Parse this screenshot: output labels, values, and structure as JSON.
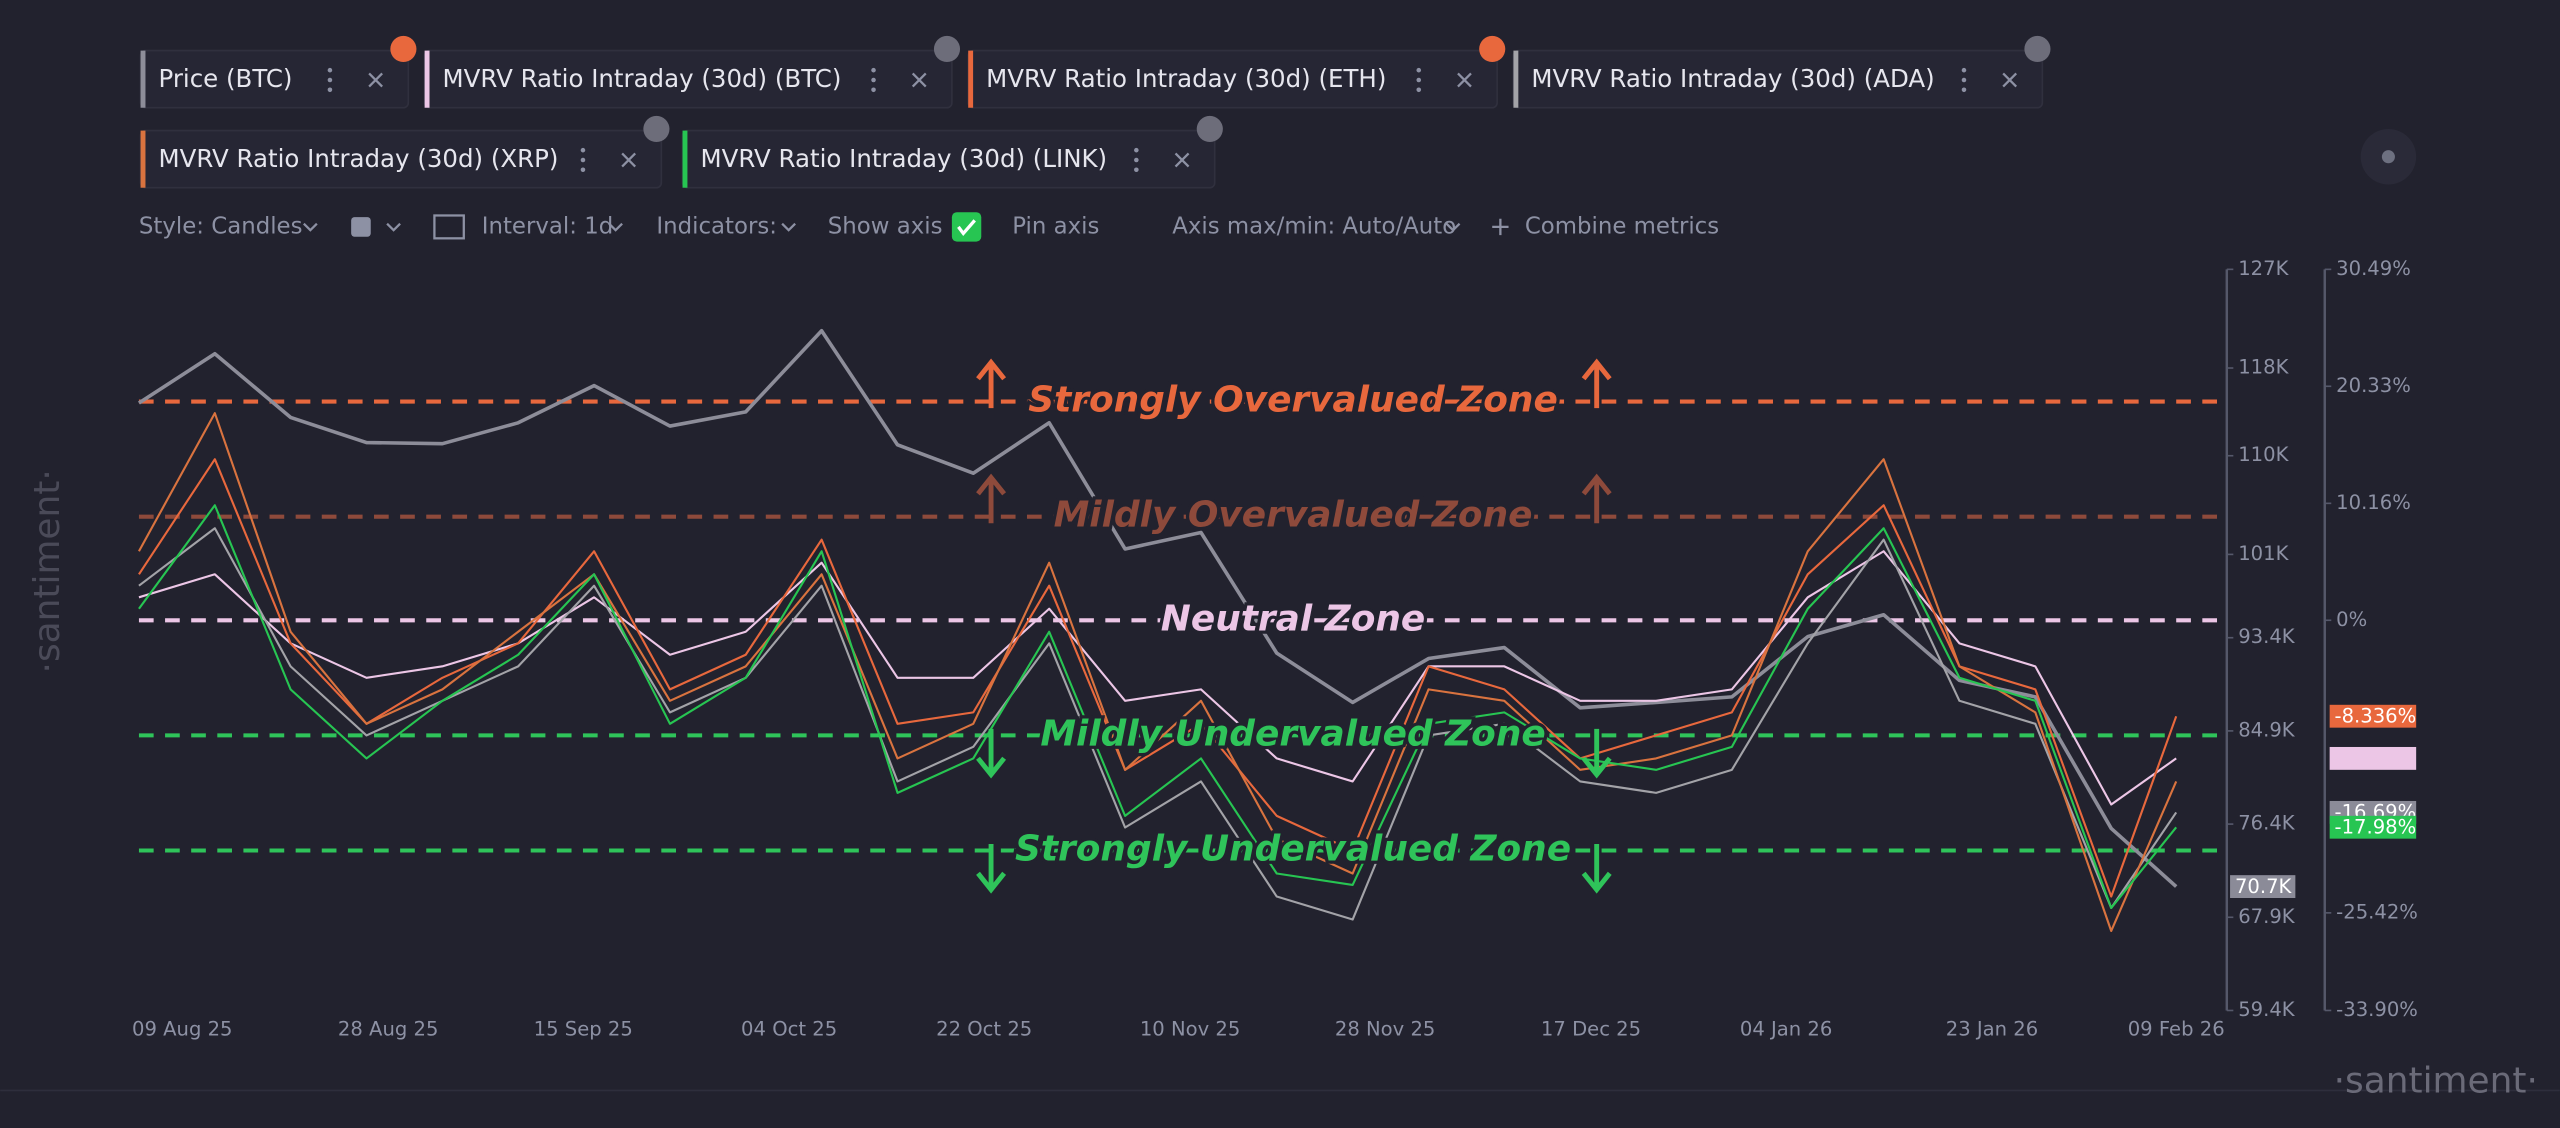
{
  "watermark": "·santiment·",
  "toolbar": [
    "Style: Candles",
    "Interval: 1d",
    "Indicators:",
    "Show axis",
    "Pin axis",
    "Axis max/min: Auto/Auto",
    "Combine metrics"
  ],
  "chart_data": {
    "type": "line",
    "x": [
      "2025-08-05",
      "2025-08-12",
      "2025-08-19",
      "2025-08-26",
      "2025-09-02",
      "2025-09-09",
      "2025-09-16",
      "2025-09-23",
      "2025-09-30",
      "2025-10-07",
      "2025-10-14",
      "2025-10-21",
      "2025-10-28",
      "2025-11-04",
      "2025-11-11",
      "2025-11-18",
      "2025-11-25",
      "2025-12-02",
      "2025-12-09",
      "2025-12-16",
      "2025-12-23",
      "2025-12-30",
      "2026-01-06",
      "2026-01-13",
      "2026-01-20",
      "2026-01-27",
      "2026-02-03",
      "2026-02-09"
    ],
    "xlim": [
      "2025-08-05",
      "2026-02-09"
    ],
    "xticks": [
      {
        "value": "2025-08-09",
        "label": "09 Aug 25"
      },
      {
        "value": "2025-08-28",
        "label": "28 Aug 25"
      },
      {
        "value": "2025-09-15",
        "label": "15 Sep 25"
      },
      {
        "value": "2025-10-04",
        "label": "04 Oct 25"
      },
      {
        "value": "2025-10-22",
        "label": "22 Oct 25"
      },
      {
        "value": "2025-11-10",
        "label": "10 Nov 25"
      },
      {
        "value": "2025-11-28",
        "label": "28 Nov 25"
      },
      {
        "value": "2025-12-17",
        "label": "17 Dec 25"
      },
      {
        "value": "2026-01-04",
        "label": "04 Jan 26"
      },
      {
        "value": "2026-01-23",
        "label": "23 Jan 26"
      },
      {
        "value": "2026-02-09",
        "label": "09 Feb 26"
      }
    ],
    "ylim": [
      59400,
      127000
    ],
    "yticks": [
      {
        "value": 127000,
        "label": "127K"
      },
      {
        "value": 118000,
        "label": "118K"
      },
      {
        "value": 110000,
        "label": "110K"
      },
      {
        "value": 101000,
        "label": "101K"
      },
      {
        "value": 93400,
        "label": "93.4K"
      },
      {
        "value": 84900,
        "label": "84.9K"
      },
      {
        "value": 76400,
        "label": "76.4K"
      },
      {
        "value": 67900,
        "label": "67.9K"
      },
      {
        "value": 59400,
        "label": "59.4K"
      }
    ],
    "y2lim": [
      -33.9,
      30.49
    ],
    "y2ticks": [
      {
        "value": 30.49,
        "label": "30.49%"
      },
      {
        "value": 20.33,
        "label": "20.33%"
      },
      {
        "value": 10.16,
        "label": "10.16%"
      },
      {
        "value": 0,
        "label": "0%"
      },
      {
        "value": -25.42,
        "label": "-25.42%"
      },
      {
        "value": -33.9,
        "label": "-33.90%"
      }
    ],
    "series": [
      {
        "name": "Price (BTC)",
        "color": "#8d8d99",
        "values": [
          114800,
          119300,
          113500,
          111200,
          111100,
          113000,
          116400,
          112700,
          114000,
          121400,
          111000,
          108400,
          113000,
          101500,
          103000,
          92000,
          87500,
          91500,
          92500,
          87000,
          87500,
          88000,
          93500,
          95500,
          89500,
          88000,
          76000,
          70700
        ]
      },
      {
        "name": "MVRV Ratio Intraday (30d) (BTC)",
        "color": "#ecc6e6",
        "axis": "y2",
        "values": [
          2,
          4,
          -2,
          -5,
          -4,
          -2,
          2,
          -3,
          -1,
          5,
          -5,
          -5,
          1,
          -7,
          -6,
          -12,
          -14,
          -4,
          -4,
          -7,
          -7,
          -6,
          2,
          6,
          -2,
          -4,
          -16,
          -12
        ]
      },
      {
        "name": "MVRV Ratio Intraday (30d) (ETH)",
        "color": "#e8683d",
        "axis": "y2",
        "values": [
          4,
          14,
          -2,
          -9,
          -5,
          -2,
          6,
          -6,
          -3,
          7,
          -9,
          -8,
          3,
          -13,
          -9,
          -17,
          -20,
          -4,
          -6,
          -12,
          -10,
          -8,
          4,
          10,
          -4,
          -6,
          -24,
          -8.336
        ]
      },
      {
        "name": "MVRV Ratio Intraday (30d) (ADA)",
        "color": "#a3a3a8",
        "axis": "y2",
        "values": [
          3,
          8,
          -4,
          -10,
          -7,
          -4,
          3,
          -8,
          -5,
          3,
          -14,
          -11,
          -2,
          -18,
          -14,
          -24,
          -26,
          -10,
          -9,
          -14,
          -15,
          -13,
          -2,
          7,
          -7,
          -9,
          -25,
          -16.69
        ]
      },
      {
        "name": "MVRV Ratio Intraday (30d) (XRP)",
        "color": "#d9733f",
        "axis": "y2",
        "values": [
          6,
          18,
          -1,
          -9,
          -6,
          -1,
          4,
          -7,
          -4,
          4,
          -12,
          -9,
          5,
          -13,
          -7,
          -19,
          -22,
          -6,
          -7,
          -13,
          -12,
          -10,
          6,
          14,
          -4,
          -8,
          -27,
          -14
        ]
      },
      {
        "name": "MVRV Ratio Intraday (30d) (LINK)",
        "color": "#27c552",
        "axis": "y2",
        "values": [
          1,
          10,
          -6,
          -12,
          -7,
          -3,
          4,
          -9,
          -5,
          6,
          -15,
          -12,
          -1,
          -17,
          -12,
          -22,
          -23,
          -9,
          -8,
          -12,
          -13,
          -11,
          1,
          8,
          -5,
          -7,
          -25,
          -17.98
        ]
      }
    ],
    "badges": [
      {
        "label": "70.7K",
        "value": 70700,
        "axis": "y",
        "color": "#8b8b98"
      },
      {
        "label": "-8.336%",
        "value": -8.336,
        "axis": "y2",
        "color": "#e8683d"
      },
      {
        "value": -12,
        "axis": "y2",
        "color": "#ecc6e6"
      },
      {
        "label": "-16.69%",
        "value": -16.69,
        "axis": "y2",
        "color": "#8b8b98"
      },
      {
        "label": "-17.98%",
        "value": -17.98,
        "axis": "y2",
        "color": "#27c552"
      }
    ],
    "zones": [
      {
        "label": "Strongly Overvalued Zone",
        "value": 19,
        "color": "#e8683d",
        "direction": "up"
      },
      {
        "label": "Mildly Overvalued Zone",
        "value": 9,
        "color": "#8e4a3b",
        "direction": "up"
      },
      {
        "label": "Neutral Zone",
        "value": 0,
        "color": "#ecc6e6"
      },
      {
        "label": "Mildly Undervalued Zone",
        "value": -10,
        "color": "#2fc45a",
        "direction": "down"
      },
      {
        "label": "Strongly Undervalued Zone",
        "value": -20,
        "color": "#2fc45a",
        "direction": "down"
      }
    ]
  }
}
